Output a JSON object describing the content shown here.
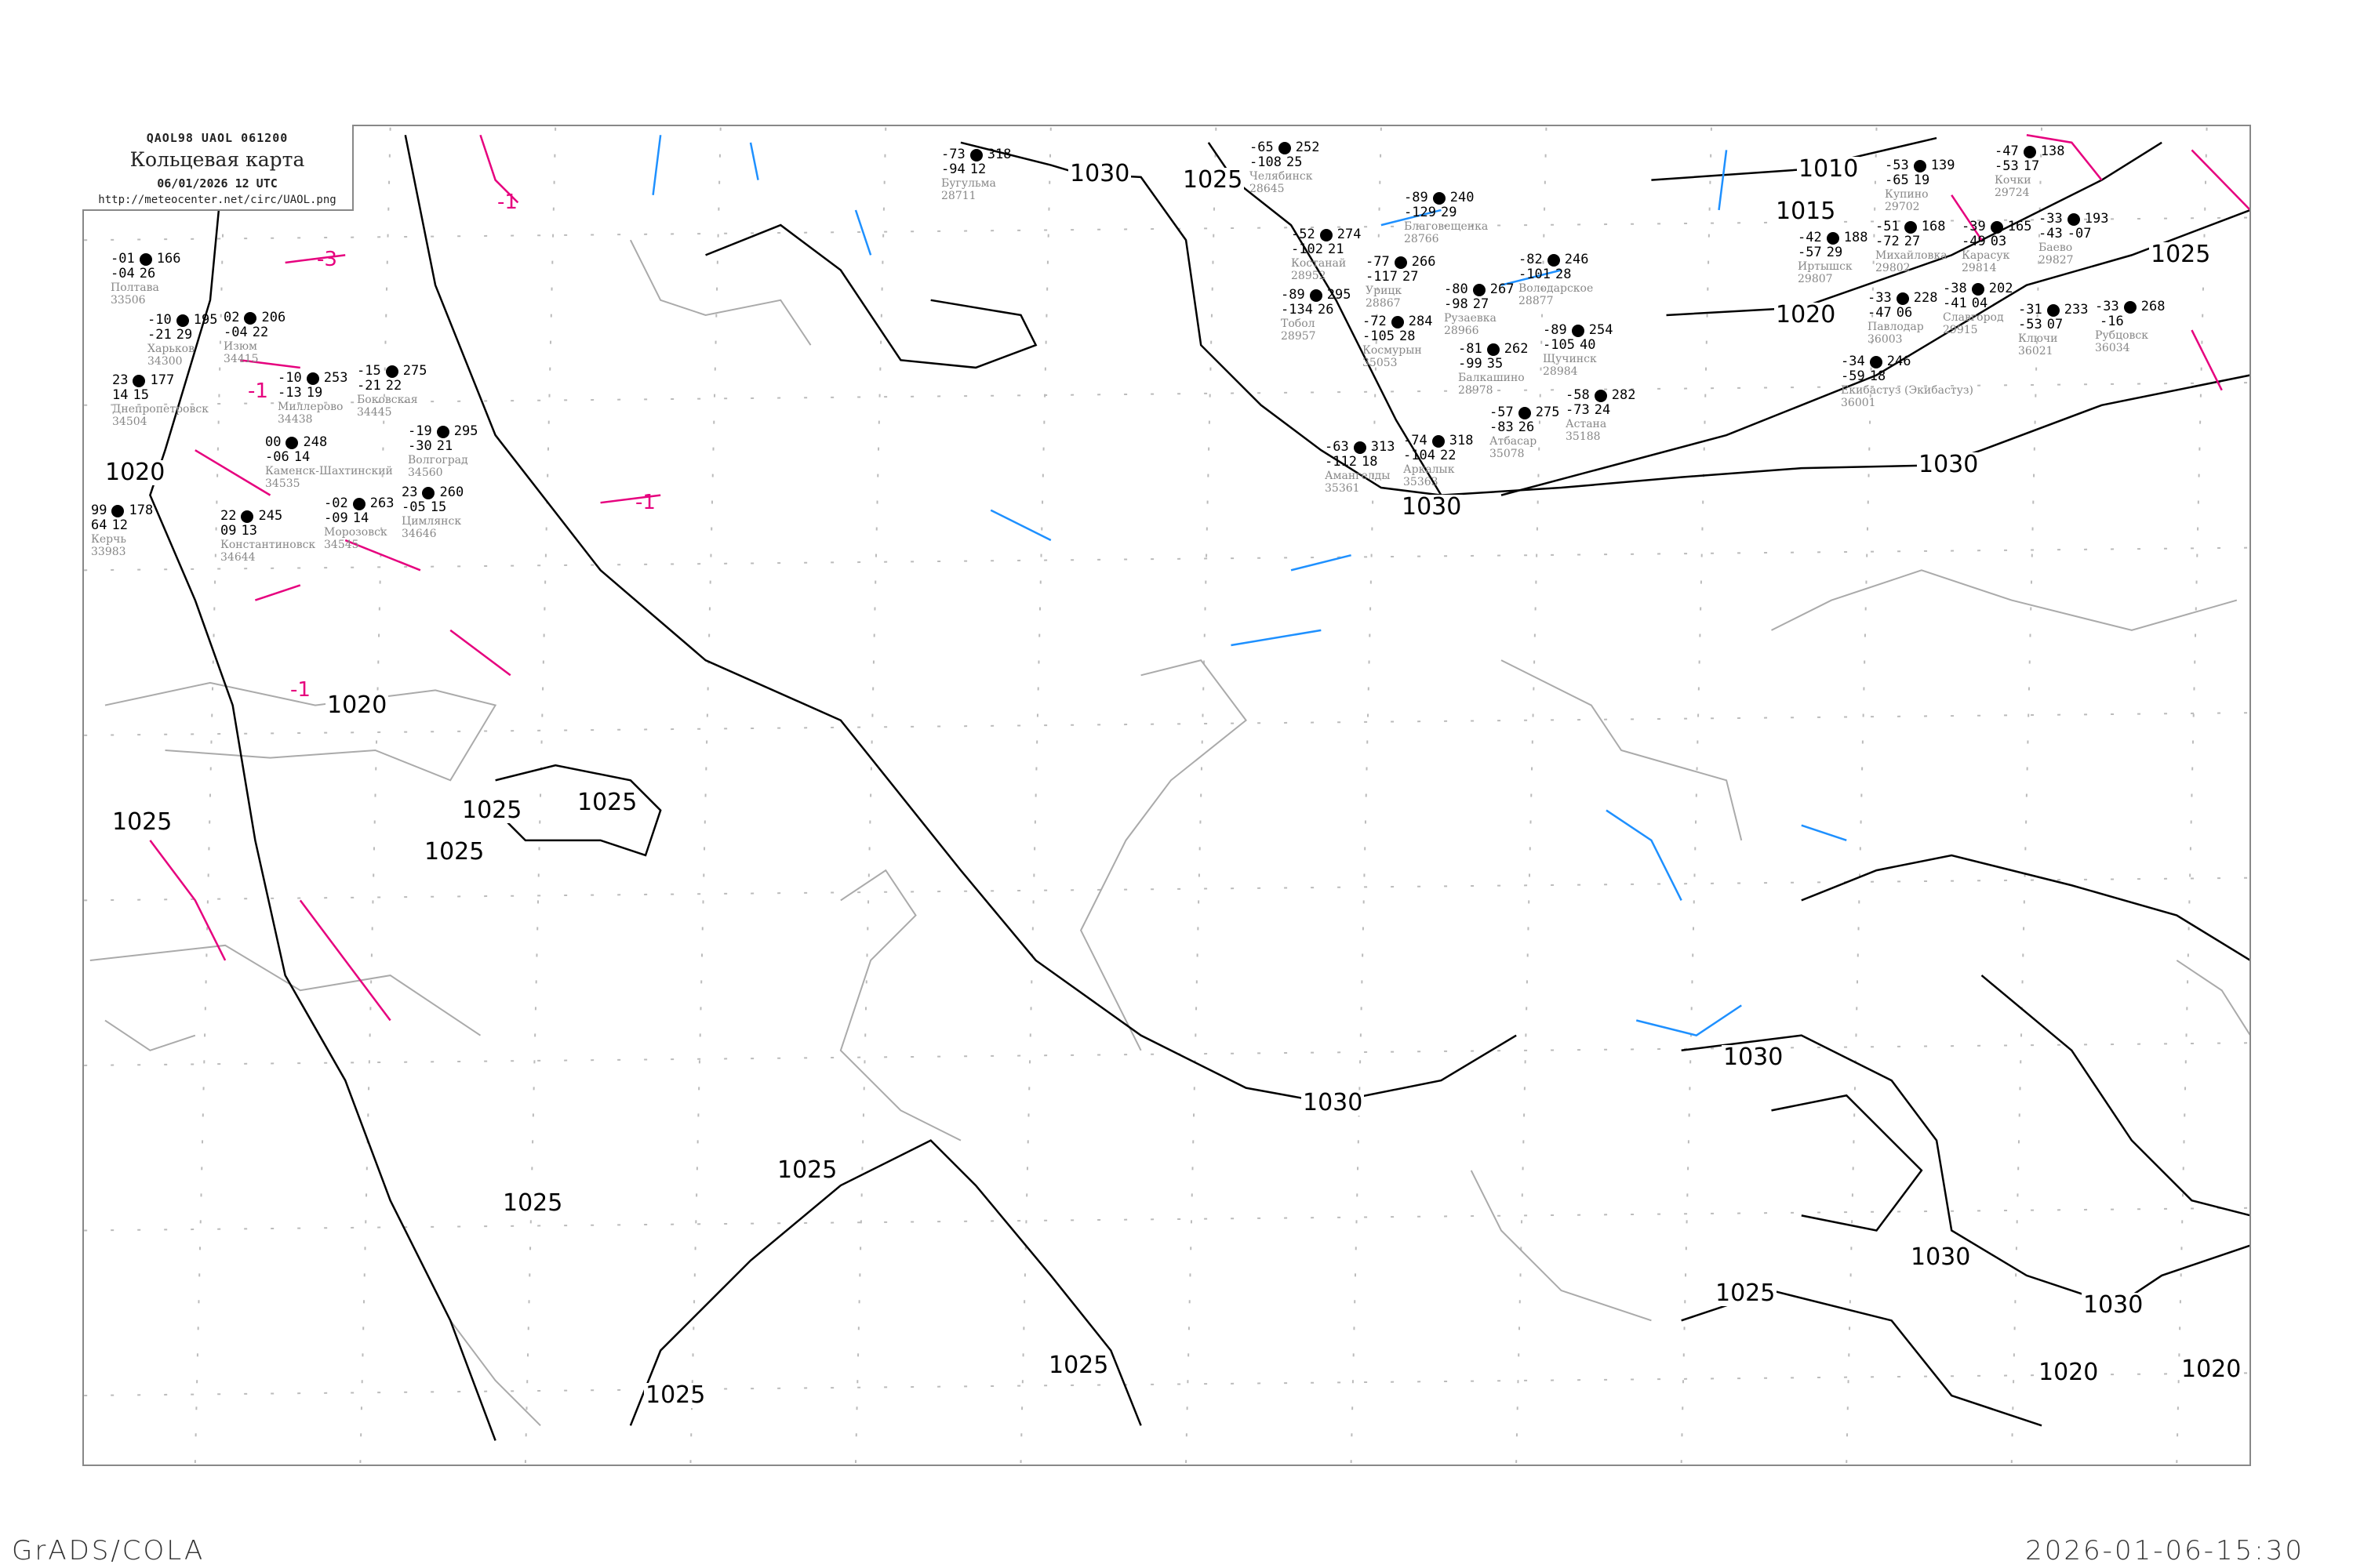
{
  "header": {
    "code": "QAOL98   UAOL   061200",
    "title": "Кольцевая карта",
    "datetime": "06/01/2026 12 UTC",
    "url": "http://meteocenter.net/circ/UAOL.png"
  },
  "footer": {
    "left": "GrADS/COLA",
    "right": "2026-01-06-15:30"
  },
  "colors": {
    "isobar": "#000000",
    "isotherm_negative": "#e6007e",
    "isotherm_zero": "#1e90ff",
    "coastline": "#aaaaaa",
    "frame": "#888888"
  },
  "isobar_labels": [
    "1030",
    "1025",
    "1010",
    "1015",
    "1020",
    "1025",
    "1030",
    "1030",
    "1020",
    "1020",
    "1025",
    "1025",
    "1025",
    "1025",
    "1025",
    "1025",
    "1025",
    "1030",
    "1030",
    "1030",
    "1025",
    "1030",
    "1020",
    "1020",
    "1025"
  ],
  "isotherm_labels": [
    "-1",
    "-3",
    "-1",
    "-1",
    "-1"
  ],
  "stations": [
    {
      "name": "Бугульма",
      "id": "28711",
      "temp": "-73",
      "pressure": "318",
      "dew": "-94",
      "tendency": "12"
    },
    {
      "name": "Челябинск",
      "id": "28645",
      "temp": "-65",
      "pressure": "252",
      "dew": "-108",
      "tendency": "25"
    },
    {
      "name": "Благовещенка",
      "id": "28766",
      "temp": "-89",
      "pressure": "240",
      "dew": "-129",
      "tendency": "29"
    },
    {
      "name": "Купино",
      "id": "29702",
      "temp": "-53",
      "pressure": "139",
      "dew": "-65",
      "tendency": "19"
    },
    {
      "name": "Кочки",
      "id": "29724",
      "temp": "-47",
      "pressure": "138",
      "dew": "-53",
      "tendency": "17"
    },
    {
      "name": "Михайловка",
      "id": "29802",
      "temp": "-51",
      "pressure": "168",
      "dew": "-72",
      "tendency": "27"
    },
    {
      "name": "Карасук",
      "id": "29814",
      "temp": "-39",
      "pressure": "165",
      "dew": "-49",
      "tendency": "03"
    },
    {
      "name": "Иртышск",
      "id": "29807",
      "temp": "-42",
      "pressure": "188",
      "dew": "-57",
      "tendency": "29"
    },
    {
      "name": "Славгород",
      "id": "29915",
      "temp": "-38",
      "pressure": "202",
      "dew": "-41",
      "tendency": "04"
    },
    {
      "name": "Баево",
      "id": "29827",
      "temp": "-33",
      "pressure": "193",
      "dew": "-43",
      "tendency": "-07"
    },
    {
      "name": "Павлодар",
      "id": "36003",
      "temp": "-33",
      "pressure": "228",
      "dew": "-47",
      "tendency": "06"
    },
    {
      "name": "Ключи",
      "id": "36021",
      "temp": "-31",
      "pressure": "233",
      "dew": "-53",
      "tendency": "07"
    },
    {
      "name": "Рубцовск",
      "id": "36034",
      "temp": "-33",
      "pressure": "268",
      "dew": "",
      "tendency": "-16"
    },
    {
      "name": "Екибастуз (Экибастуз)",
      "id": "36001",
      "temp": "-34",
      "pressure": "246",
      "dew": "-59",
      "tendency": "18"
    },
    {
      "name": "Тобол",
      "id": "28957",
      "temp": "-89",
      "pressure": "295",
      "dew": "-134",
      "tendency": "26"
    },
    {
      "name": "Костанай",
      "id": "28952",
      "temp": "-52",
      "pressure": "274",
      "dew": "-102",
      "tendency": "21"
    },
    {
      "name": "Урицк",
      "id": "28867",
      "temp": "-77",
      "pressure": "266",
      "dew": "-117",
      "tendency": "27"
    },
    {
      "name": "Космурын",
      "id": "35053",
      "temp": "-72",
      "pressure": "284",
      "dew": "-105",
      "tendency": "28"
    },
    {
      "name": "Рузаевка",
      "id": "28966",
      "temp": "-80",
      "pressure": "267",
      "dew": "-98",
      "tendency": "27"
    },
    {
      "name": "Володарское",
      "id": "28877",
      "temp": "-82",
      "pressure": "246",
      "dew": "-101",
      "tendency": "28"
    },
    {
      "name": "Балкашино",
      "id": "28978",
      "temp": "-81",
      "pressure": "262",
      "dew": "-99",
      "tendency": "35"
    },
    {
      "name": "Щучинск",
      "id": "28984",
      "temp": "-89",
      "pressure": "254",
      "dew": "-105",
      "tendency": "40"
    },
    {
      "name": "Атбасар",
      "id": "35078",
      "temp": "-57",
      "pressure": "275",
      "dew": "-83",
      "tendency": "26"
    },
    {
      "name": "Астана",
      "id": "35188",
      "temp": "-58",
      "pressure": "282",
      "dew": "-73",
      "tendency": "24"
    },
    {
      "name": "Аркалык",
      "id": "35363",
      "temp": "-74",
      "pressure": "318",
      "dew": "-104",
      "tendency": "22"
    },
    {
      "name": "Амангелды",
      "id": "35361",
      "temp": "-63",
      "pressure": "313",
      "dew": "-112",
      "tendency": "18"
    },
    {
      "name": "Полтава",
      "id": "33506",
      "temp": "-01",
      "pressure": "166",
      "dew": "-04",
      "tendency": "26"
    },
    {
      "name": "Харьков",
      "id": "34300",
      "temp": "-10",
      "pressure": "195",
      "dew": "-21",
      "tendency": "29"
    },
    {
      "name": "Днепропетровск",
      "id": "34504",
      "temp": "23",
      "pressure": "177",
      "dew": "14",
      "tendency": "15"
    },
    {
      "name": "Изюм",
      "id": "34415",
      "temp": "02",
      "pressure": "206",
      "dew": "-04",
      "tendency": "22"
    },
    {
      "name": "Миллерово",
      "id": "34438",
      "temp": "-10",
      "pressure": "253",
      "dew": "-13",
      "tendency": "19"
    },
    {
      "name": "Боковская",
      "id": "34445",
      "temp": "-15",
      "pressure": "275",
      "dew": "-21",
      "tendency": "22"
    },
    {
      "name": "Каменск-Шахтинский",
      "id": "34535",
      "temp": "00",
      "pressure": "248",
      "dew": "-06",
      "tendency": "14"
    },
    {
      "name": "Морозовск",
      "id": "34545",
      "temp": "-02",
      "pressure": "263",
      "dew": "-09",
      "tendency": "14"
    },
    {
      "name": "Волгоград",
      "id": "34560",
      "temp": "-19",
      "pressure": "295",
      "dew": "-30",
      "tendency": "21"
    },
    {
      "name": "Константиновск",
      "id": "34644",
      "temp": "22",
      "pressure": "245",
      "dew": "09",
      "tendency": "13"
    },
    {
      "name": "Цимлянск",
      "id": "34646",
      "temp": "23",
      "pressure": "260",
      "dew": "-05",
      "tendency": "15"
    },
    {
      "name": "Керчь",
      "id": "33983",
      "temp": "99",
      "pressure": "178",
      "dew": "64",
      "tendency": "12"
    }
  ]
}
